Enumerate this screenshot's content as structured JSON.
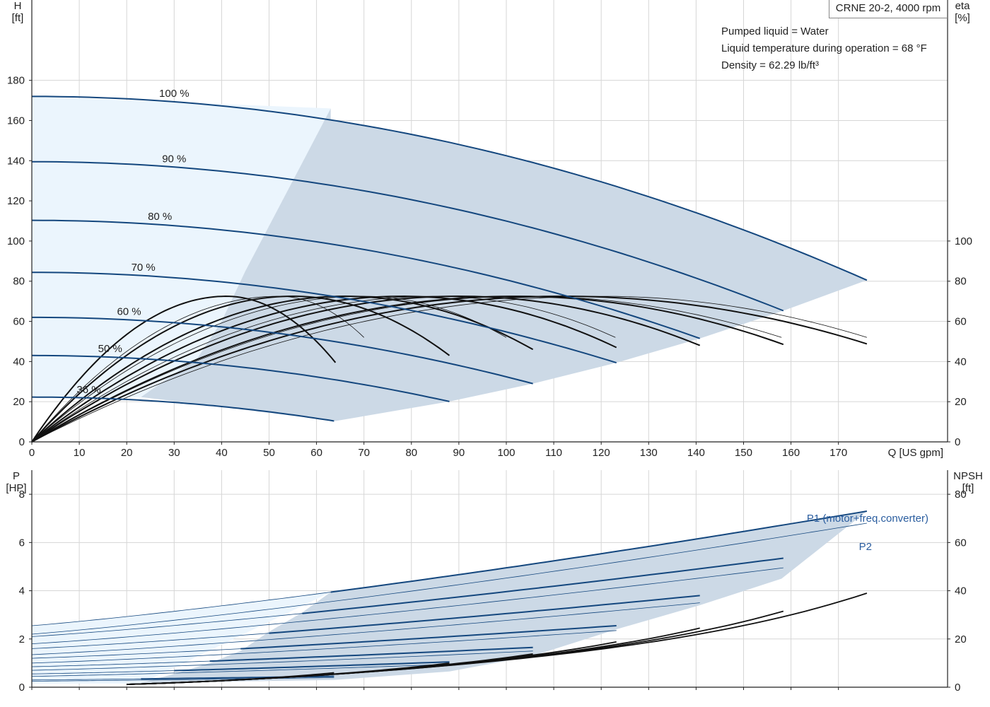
{
  "title_box": "CRNE 20-2, 4000 rpm",
  "info": {
    "pumped_liquid": "Pumped liquid = Water",
    "liquid_temperature": "Liquid temperature during operation = 68 °F",
    "density": "Density = 62.29 lb/ft³"
  },
  "colors": {
    "head_curve": "#14477e",
    "region_dark": "#ccd9e6",
    "region_light": "#ebf5fd",
    "grid": "#d6d6d6",
    "axis": "#222222",
    "label_blue": "#2a5d9f"
  },
  "chart_data": [
    {
      "type": "line",
      "panel": "head-efficiency",
      "xlabel": "Q [US gpm]",
      "ylabel_left": [
        "H",
        "[ft]"
      ],
      "ylabel_right": [
        "eta",
        "[%]"
      ],
      "xlim": [
        0,
        193
      ],
      "xticks": [
        0,
        10,
        20,
        30,
        40,
        50,
        60,
        70,
        80,
        90,
        100,
        110,
        120,
        130,
        140,
        150,
        160,
        170
      ],
      "ylim_left": [
        0,
        220
      ],
      "yticks_left": [
        0,
        20,
        40,
        60,
        80,
        100,
        120,
        140,
        160,
        180
      ],
      "yticks_right": [
        0,
        20,
        40,
        60,
        80,
        100
      ],
      "grid": true,
      "speed_curves": [
        {
          "label": "100 %",
          "qmax": 176,
          "h0": 172,
          "hend": 80.5
        },
        {
          "label": "90 %",
          "qmax": 158.4,
          "h0": 139.5,
          "hend": 65.3
        },
        {
          "label": "80 %",
          "qmax": 140.8,
          "h0": 110.3,
          "hend": 51.5
        },
        {
          "label": "70 %",
          "qmax": 123.2,
          "h0": 84.4,
          "hend": 39.4
        },
        {
          "label": "60 %",
          "qmax": 105.6,
          "h0": 62,
          "hend": 29
        },
        {
          "label": "50 %",
          "qmax": 88,
          "h0": 43,
          "hend": 20.1
        },
        {
          "label": "36 %",
          "qmax": 63.7,
          "h0": 22.3,
          "hend": 10.4
        }
      ],
      "efficiency_curves": [
        {
          "qmax": 64,
          "peak": 72.5,
          "end": 39.5,
          "emphasis": true
        },
        {
          "qmax": 88,
          "peak": 72.5,
          "end": 43,
          "emphasis": true
        },
        {
          "qmax": 105.6,
          "peak": 72.5,
          "end": 46,
          "emphasis": true
        },
        {
          "qmax": 123.2,
          "peak": 72.5,
          "end": 47,
          "emphasis": true
        },
        {
          "qmax": 140.8,
          "peak": 72.5,
          "end": 48,
          "emphasis": true
        },
        {
          "qmax": 158.4,
          "peak": 72.5,
          "end": 48.5,
          "emphasis": true
        },
        {
          "qmax": 176,
          "peak": 72.5,
          "end": 48.8,
          "emphasis": true
        },
        {
          "qmax": 70,
          "peak": 72.5,
          "end": 52,
          "emphasis": false
        },
        {
          "qmax": 100,
          "peak": 72.5,
          "end": 52,
          "emphasis": false
        },
        {
          "qmax": 123,
          "peak": 72.5,
          "end": 52,
          "emphasis": false
        },
        {
          "qmax": 158,
          "peak": 72.5,
          "end": 52,
          "emphasis": false
        },
        {
          "qmax": 176,
          "peak": 72.5,
          "end": 52,
          "emphasis": false
        }
      ],
      "light_region_boundary": [
        [
          0,
          172
        ],
        [
          63,
          166
        ],
        [
          57,
          139
        ],
        [
          45,
          85
        ],
        [
          40,
          60
        ],
        [
          35,
          42
        ],
        [
          23,
          22.3
        ],
        [
          0,
          22.3
        ]
      ],
      "dark_region_upper_end": [
        176,
        80.5
      ],
      "dark_region_lower": [
        [
          64,
          10.4
        ],
        [
          88,
          20.1
        ],
        [
          105.6,
          29
        ],
        [
          123.2,
          39.4
        ],
        [
          140.8,
          51.5
        ],
        [
          158.4,
          65.3
        ],
        [
          176,
          80.5
        ]
      ]
    },
    {
      "type": "line",
      "panel": "power-npsh",
      "xlim": [
        0,
        193
      ],
      "xticks": [
        0,
        10,
        20,
        30,
        40,
        50,
        60,
        70,
        80,
        90,
        100,
        110,
        120,
        130,
        140,
        150,
        160,
        170
      ],
      "ylabel_left": [
        "P",
        "[HP]"
      ],
      "ylabel_right": [
        "NPSH",
        "[ft]"
      ],
      "ylim_left": [
        0,
        9
      ],
      "yticks_left": [
        0,
        2,
        4,
        6,
        8
      ],
      "yticks_right": [
        0,
        20,
        40,
        60,
        80
      ],
      "grid": true,
      "series_labels": {
        "p1": "P1 (motor+freq.converter)",
        "p2": "P2"
      },
      "p1_curves": [
        {
          "qmax": 176,
          "p0": 2.55,
          "pend": 7.3
        },
        {
          "qmax": 158.4,
          "p0": 2.1,
          "pend": 5.35
        },
        {
          "qmax": 140.8,
          "p0": 1.6,
          "pend": 3.8
        },
        {
          "qmax": 123.2,
          "p0": 1.2,
          "pend": 2.55
        },
        {
          "qmax": 105.6,
          "p0": 0.85,
          "pend": 1.65
        },
        {
          "qmax": 88,
          "p0": 0.55,
          "pend": 1.05
        },
        {
          "qmax": 63.7,
          "p0": 0.3,
          "pend": 0.45
        }
      ],
      "p2_curves": [
        {
          "qmax": 176,
          "p0": 2.2,
          "pend": 6.8
        },
        {
          "qmax": 158.4,
          "p0": 1.8,
          "pend": 4.95
        },
        {
          "qmax": 140.8,
          "p0": 1.35,
          "pend": 3.5
        },
        {
          "qmax": 123.2,
          "p0": 1.0,
          "pend": 2.35
        },
        {
          "qmax": 105.6,
          "p0": 0.7,
          "pend": 1.5
        },
        {
          "qmax": 88,
          "p0": 0.45,
          "pend": 0.95
        },
        {
          "qmax": 63.7,
          "p0": 0.25,
          "pend": 0.4
        }
      ],
      "npsh_curves": [
        {
          "qmax": 176,
          "end": 39
        },
        {
          "qmax": 158.4,
          "end": 31.5
        },
        {
          "qmax": 140.8,
          "end": 24.5
        },
        {
          "qmax": 123.2,
          "end": 18.8
        },
        {
          "qmax": 105.6,
          "end": 13.8
        },
        {
          "qmax": 88,
          "end": 10.0
        },
        {
          "qmax": 63.7,
          "end": 6.0
        }
      ]
    }
  ]
}
